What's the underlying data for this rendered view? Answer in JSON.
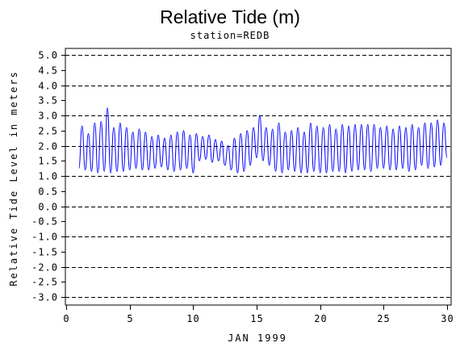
{
  "chart_data": {
    "type": "line",
    "title": "Relative Tide (m)",
    "subtitle": "station=REDB",
    "xlabel": "JAN 1999",
    "ylabel": "Relative Tide Level in meters",
    "xlim": [
      0,
      30
    ],
    "ylim": [
      -3.0,
      5.0
    ],
    "x_ticks": [
      "0",
      "5",
      "10",
      "15",
      "20",
      "25",
      "30"
    ],
    "y_ticks": [
      "-3.0",
      "-2.5",
      "-2.0",
      "-1.5",
      "-1.0",
      "-0.5",
      "0.0",
      "0.5",
      "1.0",
      "1.5",
      "2.0",
      "2.5",
      "3.0",
      "3.5",
      "4.0",
      "4.5",
      "5.0"
    ],
    "dashed_gridlines_y": [
      -3,
      -2,
      -1,
      0,
      1,
      2,
      3,
      4,
      5
    ],
    "grid": true,
    "series": [
      {
        "color": "#0000ff",
        "x": [
          1.0,
          1.25,
          1.5,
          1.75,
          2.0,
          2.25,
          2.5,
          2.75,
          3.0,
          3.25,
          3.5,
          3.75,
          4.0,
          4.25,
          4.5,
          4.75,
          5.0,
          5.25,
          5.5,
          5.75,
          6.0,
          6.25,
          6.5,
          6.75,
          7.0,
          7.25,
          7.5,
          7.75,
          8.0,
          8.25,
          8.5,
          8.75,
          9.0,
          9.25,
          9.5,
          9.75,
          10.0,
          10.25,
          10.5,
          10.75,
          11.0,
          11.25,
          11.5,
          11.75,
          12.0,
          12.25,
          12.5,
          12.75,
          13.0,
          13.25,
          13.5,
          13.75,
          14.0,
          14.25,
          14.5,
          14.75,
          15.0,
          15.25,
          15.5,
          15.75,
          16.0,
          16.25,
          16.5,
          16.75,
          17.0,
          17.25,
          17.5,
          17.75,
          18.0,
          18.25,
          18.5,
          18.75,
          19.0,
          19.25,
          19.5,
          19.75,
          20.0,
          20.25,
          20.5,
          20.75,
          21.0,
          21.25,
          21.5,
          21.75,
          22.0,
          22.25,
          22.5,
          22.75,
          23.0,
          23.25,
          23.5,
          23.75,
          24.0,
          24.25,
          24.5,
          24.75,
          25.0,
          25.25,
          25.5,
          25.75,
          26.0,
          26.25,
          26.5,
          26.75,
          27.0,
          27.25,
          27.5,
          27.75,
          28.0,
          28.25,
          28.5,
          28.75,
          29.0,
          29.25,
          29.5,
          29.75,
          30.0
        ],
        "y": [
          1.25,
          2.65,
          1.2,
          2.4,
          1.15,
          2.75,
          1.1,
          2.8,
          1.15,
          3.25,
          1.1,
          2.6,
          1.15,
          2.75,
          1.15,
          2.6,
          1.2,
          2.45,
          1.25,
          2.55,
          1.2,
          2.45,
          1.2,
          2.3,
          1.25,
          2.35,
          1.3,
          2.25,
          1.2,
          2.35,
          1.15,
          2.45,
          1.2,
          2.5,
          1.25,
          2.35,
          1.1,
          2.4,
          1.5,
          2.3,
          1.55,
          2.35,
          1.45,
          2.2,
          1.5,
          2.15,
          1.35,
          2.0,
          1.2,
          2.25,
          1.1,
          2.4,
          1.15,
          2.5,
          1.35,
          2.6,
          1.6,
          3.0,
          1.5,
          2.6,
          1.35,
          2.55,
          1.15,
          2.75,
          1.1,
          2.45,
          1.2,
          2.5,
          1.15,
          2.6,
          1.1,
          2.45,
          1.1,
          2.75,
          1.15,
          2.65,
          1.1,
          2.6,
          1.1,
          2.7,
          1.15,
          2.55,
          1.15,
          2.7,
          1.1,
          2.65,
          1.15,
          2.7,
          1.2,
          2.7,
          1.2,
          2.7,
          1.15,
          2.7,
          1.25,
          2.6,
          1.25,
          2.65,
          1.2,
          2.55,
          1.2,
          2.65,
          1.25,
          2.6,
          1.15,
          2.7,
          1.2,
          2.6,
          1.35,
          2.75,
          1.25,
          2.75,
          1.3,
          2.85,
          1.35,
          2.75,
          1.6
        ]
      }
    ]
  }
}
